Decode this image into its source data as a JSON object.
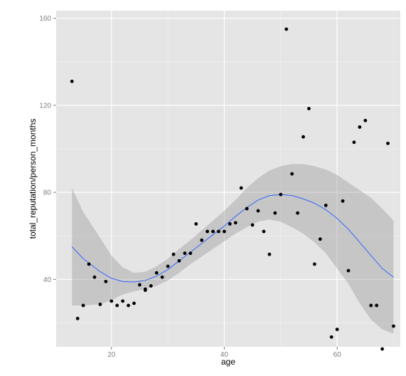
{
  "chart_data": {
    "type": "scatter",
    "xlabel": "age",
    "ylabel": "total_reputation/person_months",
    "xlim": [
      10.2,
      71.2
    ],
    "ylim": [
      9,
      163.5
    ],
    "x_ticks": [
      20,
      40,
      60
    ],
    "y_ticks": [
      40,
      80,
      120,
      160
    ],
    "x_tick_labels": [
      "20",
      "40",
      "60"
    ],
    "y_tick_labels": [
      "40",
      "80",
      "120",
      "160"
    ],
    "grid": true,
    "legend": "none",
    "colors": {
      "panel_background": "#e5e5e5",
      "grid_major": "#ffffff",
      "grid_minor": "#f2f2f2",
      "points": "#000000",
      "smooth_line": "#3366ff",
      "confidence_band": "#999999",
      "tick_label": "#7f7f7f"
    },
    "points": [
      {
        "x": 13,
        "y": 131
      },
      {
        "x": 14,
        "y": 22
      },
      {
        "x": 15,
        "y": 28
      },
      {
        "x": 16,
        "y": 47
      },
      {
        "x": 17,
        "y": 41
      },
      {
        "x": 18,
        "y": 28.5
      },
      {
        "x": 19,
        "y": 39
      },
      {
        "x": 20,
        "y": 30
      },
      {
        "x": 21,
        "y": 28
      },
      {
        "x": 22,
        "y": 30
      },
      {
        "x": 23,
        "y": 28
      },
      {
        "x": 24,
        "y": 29
      },
      {
        "x": 25,
        "y": 37.5
      },
      {
        "x": 26,
        "y": 35.5
      },
      {
        "x": 26,
        "y": 35
      },
      {
        "x": 27,
        "y": 37
      },
      {
        "x": 28,
        "y": 43
      },
      {
        "x": 29,
        "y": 41
      },
      {
        "x": 30,
        "y": 46
      },
      {
        "x": 31,
        "y": 51.5
      },
      {
        "x": 32,
        "y": 48.5
      },
      {
        "x": 33,
        "y": 52
      },
      {
        "x": 34,
        "y": 52
      },
      {
        "x": 35,
        "y": 65.5
      },
      {
        "x": 36,
        "y": 58
      },
      {
        "x": 37,
        "y": 62
      },
      {
        "x": 38,
        "y": 62
      },
      {
        "x": 39,
        "y": 62
      },
      {
        "x": 40,
        "y": 62
      },
      {
        "x": 41,
        "y": 65.5
      },
      {
        "x": 42,
        "y": 66
      },
      {
        "x": 43,
        "y": 82
      },
      {
        "x": 44,
        "y": 72.5
      },
      {
        "x": 45,
        "y": 65
      },
      {
        "x": 46,
        "y": 71.5
      },
      {
        "x": 47,
        "y": 62
      },
      {
        "x": 48,
        "y": 51.5
      },
      {
        "x": 49,
        "y": 70.5
      },
      {
        "x": 50,
        "y": 79
      },
      {
        "x": 51,
        "y": 155
      },
      {
        "x": 52,
        "y": 88.5
      },
      {
        "x": 53,
        "y": 70.5
      },
      {
        "x": 54,
        "y": 105.5
      },
      {
        "x": 55,
        "y": 118.5
      },
      {
        "x": 56,
        "y": 47
      },
      {
        "x": 57,
        "y": 58.5
      },
      {
        "x": 58,
        "y": 74
      },
      {
        "x": 59,
        "y": 13.5
      },
      {
        "x": 60,
        "y": 17
      },
      {
        "x": 61,
        "y": 76
      },
      {
        "x": 62,
        "y": 44
      },
      {
        "x": 63,
        "y": 103
      },
      {
        "x": 64,
        "y": 110
      },
      {
        "x": 65,
        "y": 113
      },
      {
        "x": 66,
        "y": 28
      },
      {
        "x": 67,
        "y": 28
      },
      {
        "x": 68,
        "y": 8
      },
      {
        "x": 69,
        "y": 102.5
      },
      {
        "x": 70,
        "y": 18.5
      }
    ],
    "smooth": {
      "method": "loess",
      "x": [
        13,
        15,
        18,
        20,
        22,
        24,
        26,
        28,
        30,
        32,
        34,
        36,
        38,
        40,
        42,
        44,
        46,
        48,
        50,
        52,
        54,
        56,
        58,
        60,
        62,
        64,
        66,
        68,
        70
      ],
      "y": [
        55,
        49.5,
        43.5,
        40.5,
        39,
        38.8,
        39.5,
        41.5,
        44.5,
        48.5,
        52.5,
        56.5,
        60.5,
        64.5,
        69,
        73,
        76.5,
        78.5,
        79,
        78.5,
        77,
        75,
        72,
        68,
        63,
        57,
        51,
        45,
        41
      ],
      "lower": [
        28,
        28,
        28.5,
        30.5,
        33,
        34.5,
        35.5,
        37,
        39.5,
        43,
        47,
        50.5,
        54,
        57.5,
        61,
        64,
        66.5,
        67.5,
        66.5,
        64,
        61,
        57,
        52,
        45,
        38,
        29,
        21.5,
        17,
        15
      ],
      "upper": [
        82,
        71,
        59,
        51,
        45.5,
        43,
        43.5,
        46,
        49.5,
        54,
        58,
        62.5,
        67,
        71.5,
        76.5,
        82,
        86.5,
        90,
        92,
        93,
        93,
        92,
        90.5,
        88,
        84.5,
        81,
        77.5,
        72.5,
        67
      ]
    }
  }
}
